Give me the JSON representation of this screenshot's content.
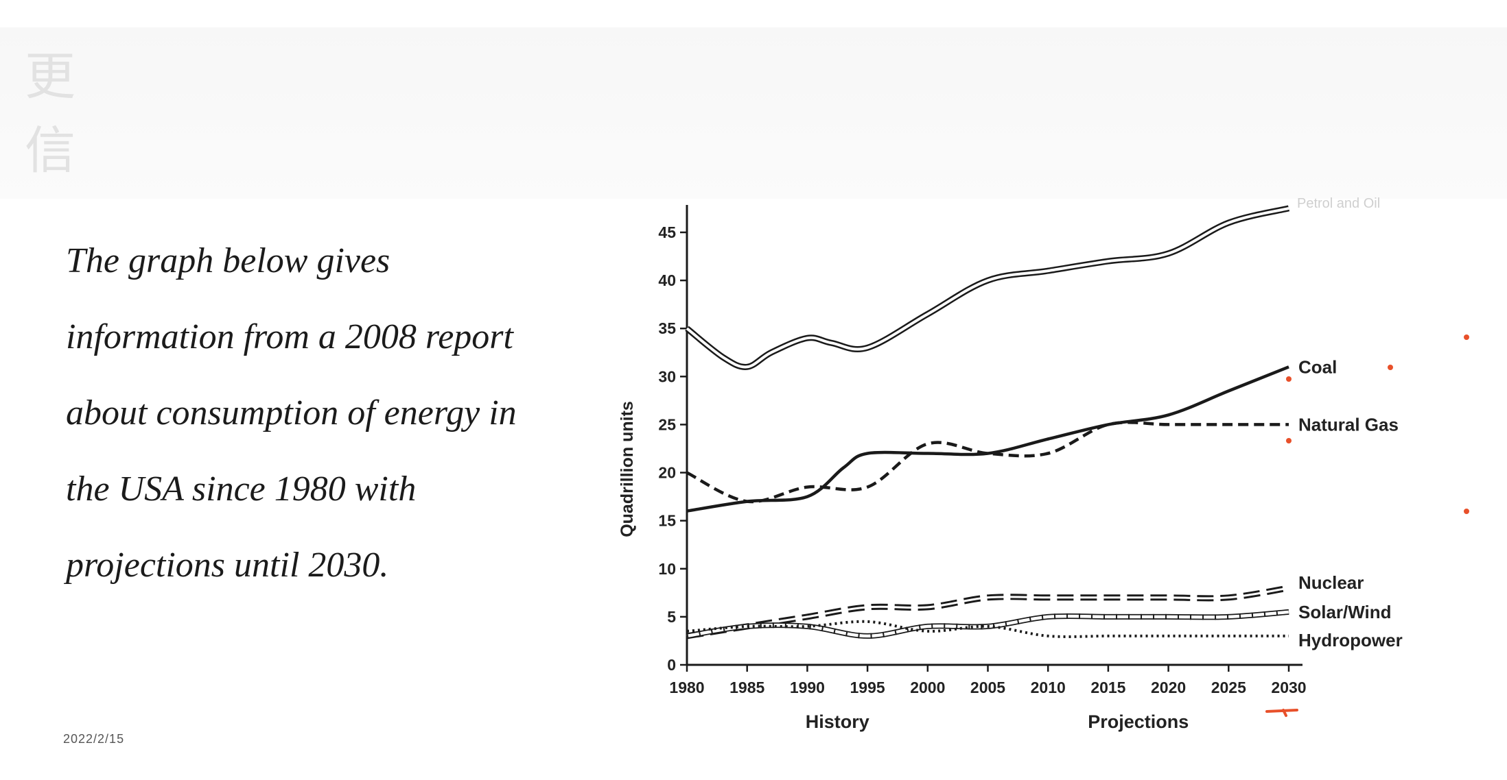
{
  "header": {
    "ghost_line_1": "更",
    "ghost_line_2": "信",
    "partial_legend": "Petrol and Oil"
  },
  "intro": {
    "lines": [
      "The graph below gives",
      "information from a 2008 report",
      "about consumption of energy in",
      "the USA since 1980 with",
      "projections until 2030."
    ]
  },
  "footer": {
    "date": "2022/2/15"
  },
  "colors": {
    "line": "#1a1a1a",
    "annotation": "#e8502a",
    "ghost": "#e2e2e2"
  },
  "chart_data": {
    "type": "line",
    "ylabel": "Quadrillion units",
    "xlabel": "",
    "section_labels": [
      "History",
      "Projections"
    ],
    "ylim": [
      0,
      45
    ],
    "xlim": [
      1980,
      2030
    ],
    "yticks": [
      0,
      5,
      10,
      15,
      20,
      25,
      30,
      35,
      40,
      45
    ],
    "xticks": [
      1980,
      1985,
      1990,
      1995,
      2000,
      2005,
      2010,
      2015,
      2020,
      2025,
      2030
    ],
    "series": [
      {
        "name": "Petrol and Oil",
        "style": "double",
        "x": [
          1980,
          1983,
          1985,
          1987,
          1990,
          1992,
          1995,
          2000,
          2005,
          2010,
          2015,
          2020,
          2025,
          2030
        ],
        "y": [
          35,
          32,
          31,
          32.5,
          34,
          33.5,
          33,
          36.5,
          40,
          41,
          42,
          42.8,
          46,
          47.5
        ]
      },
      {
        "name": "Coal",
        "style": "solid",
        "x": [
          1980,
          1985,
          1990,
          1993,
          1995,
          2000,
          2005,
          2010,
          2015,
          2020,
          2025,
          2030
        ],
        "y": [
          16,
          17,
          17.5,
          20.5,
          22,
          22,
          22,
          23.5,
          25,
          26,
          28.5,
          31
        ]
      },
      {
        "name": "Natural Gas",
        "style": "dashed",
        "x": [
          1980,
          1985,
          1990,
          1995,
          2000,
          2005,
          2010,
          2015,
          2020,
          2025,
          2030
        ],
        "y": [
          20,
          17,
          18.5,
          18.5,
          23,
          22,
          22,
          25,
          25,
          25,
          25
        ]
      },
      {
        "name": "Nuclear",
        "style": "dashdouble",
        "x": [
          1980,
          1985,
          1990,
          1995,
          2000,
          2005,
          2010,
          2015,
          2020,
          2025,
          2030
        ],
        "y": [
          3,
          4,
          5,
          6,
          6,
          7,
          7,
          7,
          7,
          7,
          8
        ]
      },
      {
        "name": "Solar/Wind",
        "style": "ladder",
        "x": [
          1980,
          1985,
          1990,
          1995,
          2000,
          2005,
          2010,
          2015,
          2020,
          2025,
          2030
        ],
        "y": [
          3,
          4,
          4,
          3,
          4,
          4,
          5,
          5,
          5,
          5,
          5.5
        ]
      },
      {
        "name": "Hydropower",
        "style": "dotted",
        "x": [
          1980,
          1985,
          1990,
          1995,
          2000,
          2005,
          2010,
          2015,
          2020,
          2025,
          2030
        ],
        "y": [
          3.5,
          4,
          4,
          4.5,
          3.5,
          4,
          3,
          3,
          3,
          3,
          3
        ]
      }
    ],
    "grid": false,
    "legend": "inline-right"
  }
}
